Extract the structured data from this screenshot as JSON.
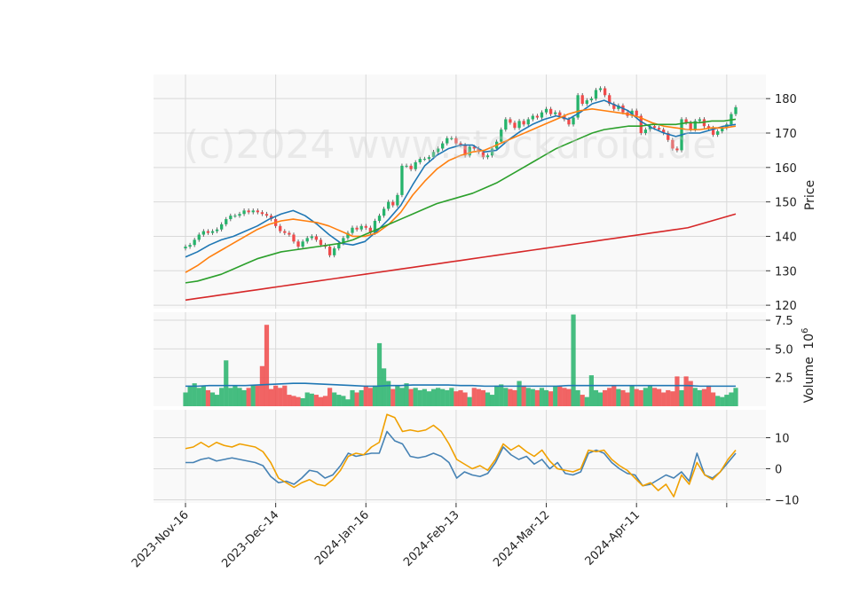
{
  "watermark": "(c)2024 www.stockdroid.de",
  "colors": {
    "up": "#26b36b",
    "down": "#f04a4a",
    "ma_fast": "#1f77b4",
    "ma_mid": "#ff7f0e",
    "ma_slow": "#2ca02c",
    "ma_long": "#d62728",
    "macd": "#4682b4",
    "signal": "#f0a000",
    "vol_ma": "#1f77b4",
    "grid": "#d9d9d9",
    "panel": "#f9f9f9"
  },
  "chart_data": [
    {
      "type": "candlestick",
      "panel": "price",
      "ylabel": "Price",
      "ylim": [
        119,
        187
      ],
      "yticks": [
        "120",
        "130",
        "140",
        "150",
        "160",
        "170",
        "180"
      ],
      "x_tick_labels": [
        "2023-Nov-16",
        "2023-Dec-14",
        "2024-Jan-16",
        "2024-Feb-13",
        "2024-Mar-12",
        "2024-Apr-11"
      ],
      "x_tick_index": [
        0,
        20,
        40,
        60,
        80,
        100
      ],
      "close": [
        137.0,
        137.5,
        139.0,
        140.5,
        141.5,
        141.0,
        141.5,
        142.0,
        143.5,
        145.0,
        146.0,
        146.0,
        146.5,
        147.5,
        147.0,
        147.5,
        147.0,
        146.5,
        146.0,
        145.0,
        143.0,
        141.5,
        141.0,
        140.5,
        138.5,
        137.0,
        138.5,
        139.5,
        140.0,
        139.0,
        137.5,
        137.0,
        134.5,
        136.5,
        138.0,
        139.5,
        141.0,
        142.5,
        142.0,
        143.0,
        142.5,
        141.0,
        144.5,
        146.0,
        148.0,
        150.0,
        149.0,
        152.0,
        160.5,
        160.5,
        159.5,
        161.5,
        162.5,
        162.5,
        163.0,
        164.5,
        165.5,
        167.0,
        168.5,
        168.5,
        167.0,
        166.5,
        163.5,
        166.0,
        165.5,
        164.5,
        163.0,
        163.5,
        165.5,
        167.5,
        171.0,
        174.0,
        173.0,
        171.5,
        173.5,
        172.5,
        174.0,
        175.0,
        174.5,
        176.0,
        177.0,
        175.5,
        176.0,
        175.0,
        174.0,
        172.5,
        174.5,
        181.0,
        178.5,
        179.5,
        180.0,
        182.5,
        183.0,
        181.0,
        178.5,
        177.0,
        178.0,
        176.0,
        175.0,
        176.5,
        175.0,
        170.0,
        171.0,
        172.0,
        171.5,
        171.0,
        170.0,
        168.0,
        165.5,
        165.0,
        174.0,
        173.0,
        171.0,
        173.5,
        174.0,
        172.0,
        171.5,
        169.5,
        170.5,
        171.5,
        172.5,
        175.5,
        177.5
      ],
      "series": [
        {
          "name": "ma_fast",
          "values": [
            134.0,
            135.5,
            137.5,
            139.0,
            140.0,
            141.5,
            143.0,
            145.0,
            146.5,
            147.5,
            146.0,
            143.5,
            140.5,
            138.0,
            137.5,
            138.5,
            141.5,
            145.0,
            149.0,
            155.0,
            160.5,
            163.5,
            165.5,
            166.5,
            166.5,
            164.5,
            165.0,
            168.0,
            170.5,
            172.5,
            174.0,
            175.0,
            174.0,
            176.0,
            178.5,
            179.5,
            178.0,
            176.5,
            173.5,
            171.5,
            170.0,
            169.0,
            170.0,
            170.0,
            171.0,
            172.0,
            172.5
          ]
        },
        {
          "name": "ma_mid",
          "values": [
            129.5,
            131.5,
            134.0,
            136.0,
            138.0,
            140.0,
            142.0,
            143.5,
            144.5,
            145.0,
            144.5,
            144.0,
            143.0,
            141.5,
            140.0,
            140.0,
            141.0,
            143.5,
            147.0,
            152.0,
            156.0,
            159.5,
            162.0,
            163.5,
            164.5,
            165.0,
            166.5,
            168.0,
            169.5,
            171.0,
            172.5,
            174.0,
            175.5,
            176.5,
            177.0,
            176.5,
            176.0,
            175.5,
            174.5,
            173.0,
            172.0,
            171.5,
            171.0,
            171.0,
            171.5,
            171.5,
            172.0
          ]
        },
        {
          "name": "ma_slow",
          "values": [
            126.5,
            127.0,
            128.0,
            129.0,
            130.5,
            132.0,
            133.5,
            134.5,
            135.5,
            136.0,
            136.5,
            137.0,
            137.5,
            138.0,
            139.0,
            140.5,
            142.0,
            143.5,
            145.0,
            146.5,
            148.0,
            149.5,
            150.5,
            151.5,
            152.5,
            154.0,
            155.5,
            157.5,
            159.5,
            161.5,
            163.5,
            165.5,
            167.0,
            168.5,
            170.0,
            171.0,
            171.5,
            172.0,
            172.0,
            172.5,
            172.5,
            172.5,
            173.0,
            173.0,
            173.5,
            173.5,
            174.0
          ]
        },
        {
          "name": "ma_long",
          "values": [
            121.5,
            122.0,
            122.5,
            123.0,
            123.5,
            124.0,
            124.5,
            125.0,
            125.5,
            126.0,
            126.5,
            127.0,
            127.5,
            128.0,
            128.5,
            129.0,
            129.5,
            130.0,
            130.5,
            131.0,
            131.5,
            132.0,
            132.5,
            133.0,
            133.5,
            134.0,
            134.5,
            135.0,
            135.5,
            136.0,
            136.5,
            137.0,
            137.5,
            138.0,
            138.5,
            139.0,
            139.5,
            140.0,
            140.5,
            141.0,
            141.5,
            142.0,
            142.5,
            143.5,
            144.5,
            145.5,
            146.5
          ]
        }
      ]
    },
    {
      "type": "bar",
      "panel": "volume",
      "ylabel": "Volume",
      "yunit": "10",
      "yunit_exp": "6",
      "ylim": [
        0,
        8.2
      ],
      "yticks": [
        "2.5",
        "5.0",
        "7.5"
      ],
      "values": [
        1.2,
        1.8,
        2.0,
        1.6,
        1.8,
        1.4,
        1.2,
        1.0,
        1.6,
        4.0,
        1.6,
        1.8,
        1.6,
        1.4,
        1.6,
        1.8,
        1.8,
        3.5,
        7.1,
        1.5,
        1.8,
        1.6,
        1.8,
        1.0,
        0.9,
        0.8,
        0.7,
        1.2,
        1.1,
        1.0,
        0.8,
        0.9,
        1.6,
        1.2,
        1.0,
        0.9,
        0.6,
        1.4,
        1.2,
        1.4,
        1.8,
        1.6,
        1.8,
        5.5,
        3.3,
        2.2,
        1.5,
        1.8,
        1.6,
        2.0,
        1.5,
        1.6,
        1.4,
        1.5,
        1.3,
        1.5,
        1.6,
        1.5,
        1.4,
        1.6,
        1.3,
        1.4,
        1.2,
        0.8,
        1.6,
        1.5,
        1.4,
        1.2,
        1.0,
        1.8,
        1.9,
        1.6,
        1.5,
        1.4,
        2.2,
        1.8,
        1.6,
        1.5,
        1.4,
        1.6,
        1.4,
        1.3,
        1.7,
        1.8,
        1.6,
        1.5,
        8.0,
        1.4,
        1.0,
        0.8,
        2.7,
        1.4,
        1.2,
        1.4,
        1.6,
        1.8,
        1.5,
        1.4,
        1.2,
        1.8,
        1.5,
        1.4,
        1.6,
        1.8,
        1.6,
        1.5,
        1.2,
        1.4,
        1.3,
        2.6,
        1.4,
        2.6,
        2.2,
        1.6,
        1.4,
        1.5,
        1.8,
        1.2,
        0.9,
        0.8,
        1.0,
        1.2,
        1.6,
        1.2
      ],
      "series": [
        {
          "name": "vol_ma",
          "values": [
            1.75,
            1.75,
            1.8,
            1.8,
            1.8,
            1.8,
            1.85,
            1.9,
            1.95,
            2.0,
            2.0,
            1.95,
            1.9,
            1.85,
            1.8,
            1.75,
            1.75,
            1.8,
            1.8,
            1.85,
            1.85,
            1.85,
            1.85,
            1.8,
            1.8,
            1.75,
            1.75,
            1.75,
            1.75,
            1.75,
            1.75,
            1.75,
            1.8,
            1.8,
            1.8,
            1.8,
            1.8,
            1.8,
            1.8,
            1.8,
            1.8,
            1.8,
            1.8,
            1.75,
            1.75,
            1.75,
            1.75
          ]
        }
      ]
    },
    {
      "type": "line",
      "panel": "oscillator",
      "ylim": [
        -11,
        19
      ],
      "yticks": [
        "10",
        "0",
        "−10"
      ],
      "series": [
        {
          "name": "macd",
          "values": [
            2.0,
            2.0,
            3.0,
            3.5,
            2.5,
            3.0,
            3.5,
            3.0,
            2.5,
            2.0,
            1.0,
            -2.5,
            -4.5,
            -4.0,
            -5.0,
            -3.0,
            -0.5,
            -1.0,
            -3.0,
            -2.0,
            1.0,
            5.0,
            4.0,
            4.5,
            5.0,
            5.0,
            12.0,
            9.0,
            8.0,
            4.0,
            3.5,
            4.0,
            5.0,
            4.0,
            2.0,
            -3.0,
            -1.0,
            -2.0,
            -2.5,
            -1.5,
            2.0,
            7.0,
            4.5,
            3.0,
            4.0,
            1.5,
            3.0,
            0.0,
            2.0,
            -1.5,
            -2.0,
            -1.0,
            5.0,
            6.0,
            5.0,
            2.0,
            0.0,
            -1.5,
            -2.0,
            -5.5,
            -5.0,
            -3.5,
            -2.0,
            -3.0,
            -1.0,
            -4.0,
            5.0,
            -2.0,
            -3.0,
            -1.0,
            2.0,
            5.0
          ]
        },
        {
          "name": "signal",
          "values": [
            6.5,
            7.0,
            8.5,
            7.0,
            8.5,
            7.5,
            7.0,
            8.0,
            7.5,
            7.0,
            5.5,
            2.0,
            -3.0,
            -4.5,
            -6.0,
            -4.5,
            -3.5,
            -5.0,
            -5.5,
            -3.5,
            -0.5,
            4.0,
            5.0,
            4.5,
            7.0,
            8.5,
            17.5,
            16.5,
            12.0,
            12.5,
            12.0,
            12.5,
            14.0,
            12.0,
            8.0,
            3.0,
            1.5,
            0.0,
            1.0,
            -0.5,
            3.0,
            8.0,
            6.0,
            7.5,
            5.5,
            4.0,
            6.0,
            2.5,
            0.0,
            -0.5,
            -1.0,
            0.0,
            6.0,
            5.5,
            6.0,
            3.0,
            1.0,
            -0.5,
            -3.0,
            -5.5,
            -4.5,
            -7.0,
            -5.0,
            -9.0,
            -2.0,
            -5.0,
            2.0,
            -2.0,
            -3.5,
            -1.0,
            3.0,
            6.0
          ]
        }
      ]
    }
  ]
}
